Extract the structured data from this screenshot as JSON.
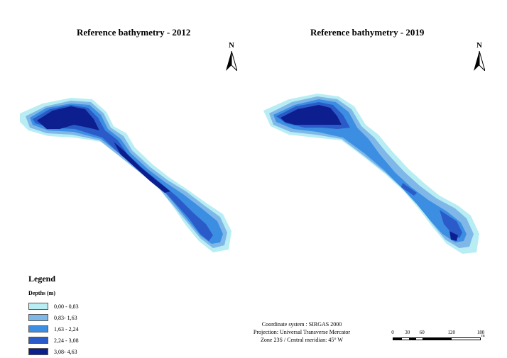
{
  "maps": [
    {
      "title": "Reference bathymetry - 2012"
    },
    {
      "title": "Reference bathymetry - 2019"
    }
  ],
  "north_arrow": {
    "label": "N",
    "icon": "north-arrow-icon"
  },
  "legend": {
    "title": "Legend",
    "subtitle": "Depths (m)",
    "classes": [
      {
        "label": "0,00 - 0,83",
        "color": "#b8eef3"
      },
      {
        "label": "0,83- 1,63",
        "color": "#7fb7e8"
      },
      {
        "label": "1,63 - 2,24",
        "color": "#3b8ee2"
      },
      {
        "label": "2,24 - 3,08",
        "color": "#2a5bc9"
      },
      {
        "label": "3,08- 4,63",
        "color": "#0d1f8f"
      }
    ]
  },
  "coordinate_info": {
    "line1": "Coordinate system : SIRGAS 2000",
    "line2": "Projection: Universal Transverse Mercator",
    "line3": "Zone 23S / Central meridian: 45° W"
  },
  "scale_bar": {
    "ticks": [
      "0",
      "30",
      "60",
      "120",
      "180"
    ],
    "tick_values": [
      0,
      30,
      60,
      120,
      180
    ],
    "units": "m"
  }
}
